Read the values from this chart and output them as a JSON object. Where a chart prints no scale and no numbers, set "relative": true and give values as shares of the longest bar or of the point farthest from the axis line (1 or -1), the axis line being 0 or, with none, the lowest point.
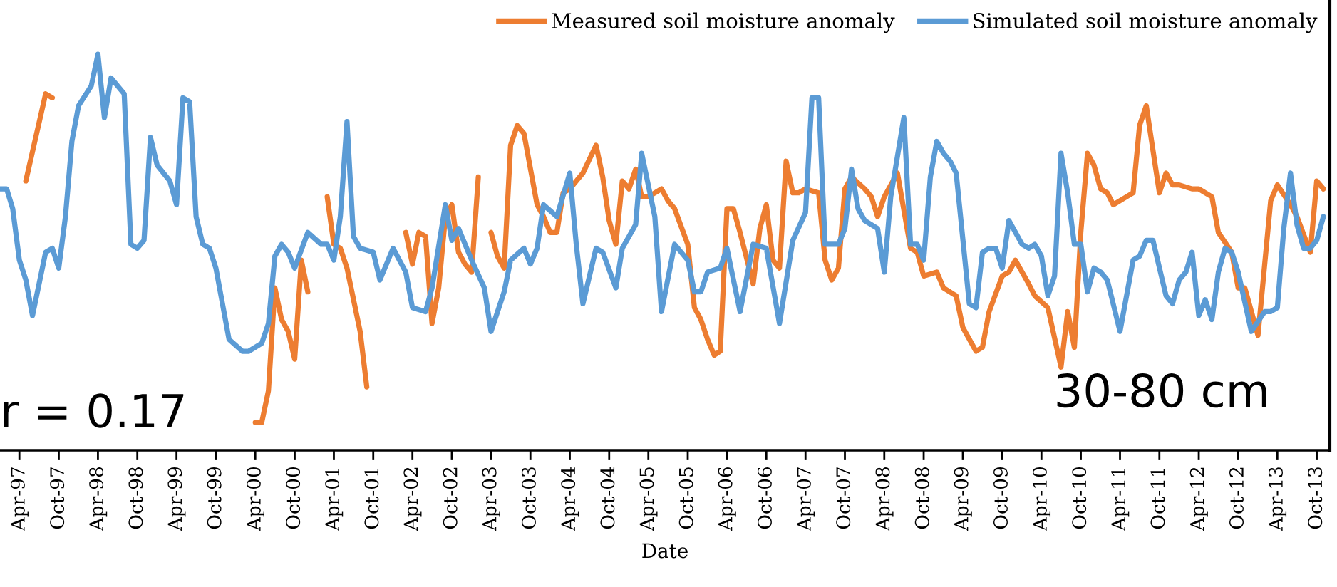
{
  "chart_data": {
    "type": "line",
    "relative": true,
    "xlabel": "Date",
    "legend": "top right",
    "grid": false,
    "marker": "none",
    "line_style": "solid",
    "annotations": [
      "r = 0.17",
      "30-80 cm"
    ],
    "xlim": [
      "1997-01",
      "2013-12"
    ],
    "xticks": [
      {
        "value": "1997-04",
        "label": "Apr-97"
      },
      {
        "value": "1997-10",
        "label": "Oct-97"
      },
      {
        "value": "1998-04",
        "label": "Apr-98"
      },
      {
        "value": "1998-10",
        "label": "Oct-98"
      },
      {
        "value": "1999-04",
        "label": "Apr-99"
      },
      {
        "value": "1999-10",
        "label": "Oct-99"
      },
      {
        "value": "2000-04",
        "label": "Apr-00"
      },
      {
        "value": "2000-10",
        "label": "Oct-00"
      },
      {
        "value": "2001-04",
        "label": "Apr-01"
      },
      {
        "value": "2001-10",
        "label": "Oct-01"
      },
      {
        "value": "2002-04",
        "label": "Apr-02"
      },
      {
        "value": "2002-10",
        "label": "Oct-02"
      },
      {
        "value": "2003-04",
        "label": "Apr-03"
      },
      {
        "value": "2003-10",
        "label": "Oct-03"
      },
      {
        "value": "2004-04",
        "label": "Apr-04"
      },
      {
        "value": "2004-10",
        "label": "Oct-04"
      },
      {
        "value": "2005-04",
        "label": "Apr-05"
      },
      {
        "value": "2005-10",
        "label": "Oct-05"
      },
      {
        "value": "2006-04",
        "label": "Apr-06"
      },
      {
        "value": "2006-10",
        "label": "Oct-06"
      },
      {
        "value": "2007-04",
        "label": "Apr-07"
      },
      {
        "value": "2007-10",
        "label": "Oct-07"
      },
      {
        "value": "2008-04",
        "label": "Apr-08"
      },
      {
        "value": "2008-10",
        "label": "Oct-08"
      },
      {
        "value": "2009-04",
        "label": "Apr-09"
      },
      {
        "value": "2009-10",
        "label": "Oct-09"
      },
      {
        "value": "2010-04",
        "label": "Apr-10"
      },
      {
        "value": "2010-10",
        "label": "Oct-10"
      },
      {
        "value": "2011-04",
        "label": "Apr-11"
      },
      {
        "value": "2011-10",
        "label": "Oct-11"
      },
      {
        "value": "2012-04",
        "label": "Apr-12"
      },
      {
        "value": "2012-10",
        "label": "Oct-12"
      },
      {
        "value": "2013-04",
        "label": "Apr-13"
      },
      {
        "value": "2013-10",
        "label": "Oct-13"
      }
    ],
    "series": [
      {
        "name": "Measured soil moisture anomaly",
        "color": "#ed7d31",
        "x": [
          "1997-05",
          "1997-08",
          "1997-09",
          "1997-10",
          "2000-04",
          "2000-05",
          "2000-06",
          "2000-07",
          "2000-08",
          "2000-09",
          "2000-10",
          "2000-11",
          "2000-12",
          "2001-01",
          "2001-03",
          "2001-04",
          "2001-05",
          "2001-06",
          "2001-08",
          "2001-09",
          "2001-12",
          "2002-03",
          "2002-04",
          "2002-05",
          "2002-06",
          "2002-07",
          "2002-08",
          "2002-09",
          "2002-10",
          "2002-11",
          "2002-12",
          "2003-01",
          "2003-02",
          "2003-03",
          "2003-04",
          "2003-05",
          "2003-06",
          "2003-07",
          "2003-08",
          "2003-09",
          "2003-11",
          "2003-12",
          "2004-01",
          "2004-02",
          "2004-03",
          "2004-04",
          "2004-06",
          "2004-08",
          "2004-09",
          "2004-10",
          "2004-11",
          "2004-12",
          "2005-01",
          "2005-02",
          "2005-03",
          "2005-04",
          "2005-06",
          "2005-07",
          "2005-08",
          "2005-10",
          "2005-11",
          "2005-12",
          "2006-01",
          "2006-02",
          "2006-03",
          "2006-04",
          "2006-05",
          "2006-06",
          "2006-08",
          "2006-09",
          "2006-10",
          "2006-11",
          "2006-12",
          "2007-01",
          "2007-02",
          "2007-03",
          "2007-04",
          "2007-06",
          "2007-07",
          "2007-08",
          "2007-09",
          "2007-10",
          "2007-11",
          "2008-01",
          "2008-02",
          "2008-03",
          "2008-04",
          "2008-06",
          "2008-08",
          "2008-09",
          "2008-10",
          "2008-12",
          "2009-01",
          "2009-03",
          "2009-04",
          "2009-06",
          "2009-07",
          "2009-08",
          "2009-10",
          "2009-11",
          "2009-12",
          "2010-02",
          "2010-03",
          "2010-05",
          "2010-07",
          "2010-08",
          "2010-09",
          "2010-10",
          "2010-11",
          "2010-12",
          "2011-01",
          "2011-02",
          "2011-03",
          "2011-05",
          "2011-06",
          "2011-07",
          "2011-08",
          "2011-10",
          "2011-11",
          "2011-12",
          "2012-01",
          "2012-03",
          "2012-04",
          "2012-05",
          "2012-06",
          "2012-07",
          "2012-09",
          "2012-10",
          "2012-11",
          "2013-01",
          "2013-03",
          "2013-04",
          "2013-06",
          "2013-07",
          "2013-09",
          "2013-10",
          "2013-11"
        ],
        "values": [
          0.68,
          0.9,
          0.89,
          null,
          0.07,
          0.07,
          0.15,
          0.41,
          0.33,
          0.3,
          0.23,
          0.48,
          0.4,
          null,
          0.64,
          0.52,
          0.51,
          0.46,
          0.3,
          0.16,
          null,
          0.55,
          0.47,
          0.55,
          0.54,
          0.32,
          0.41,
          0.59,
          0.62,
          0.5,
          0.47,
          0.45,
          0.69,
          null,
          0.55,
          0.49,
          0.46,
          0.77,
          0.82,
          0.8,
          0.62,
          0.59,
          0.55,
          0.55,
          0.65,
          0.66,
          0.7,
          0.77,
          0.69,
          0.58,
          0.52,
          0.68,
          0.66,
          0.71,
          0.64,
          0.64,
          0.66,
          0.63,
          0.61,
          0.52,
          0.36,
          0.33,
          0.28,
          0.24,
          0.25,
          0.61,
          0.61,
          0.55,
          0.42,
          0.56,
          0.62,
          0.48,
          0.46,
          0.73,
          0.65,
          0.65,
          0.66,
          0.65,
          0.48,
          0.43,
          0.46,
          0.66,
          0.69,
          0.66,
          0.64,
          0.59,
          0.64,
          0.7,
          0.51,
          0.5,
          0.44,
          0.45,
          0.41,
          0.39,
          0.31,
          0.25,
          0.26,
          0.35,
          0.44,
          0.45,
          0.48,
          0.42,
          0.39,
          0.36,
          0.21,
          0.35,
          0.26,
          0.55,
          0.75,
          0.72,
          0.66,
          0.65,
          0.62,
          0.64,
          0.65,
          0.82,
          0.87,
          0.65,
          0.7,
          0.67,
          0.67,
          0.66,
          0.66,
          0.65,
          0.64,
          0.55,
          0.5,
          0.41,
          0.41,
          0.29,
          0.63,
          0.67,
          0.62,
          0.59,
          0.5,
          0.68,
          0.66
        ]
      },
      {
        "name": "Simulated soil moisture anomaly",
        "color": "#5b9bd5",
        "x": [
          "1997-01",
          "1997-02",
          "1997-03",
          "1997-04",
          "1997-05",
          "1997-06",
          "1997-08",
          "1997-09",
          "1997-10",
          "1997-11",
          "1997-12",
          "1998-01",
          "1998-03",
          "1998-04",
          "1998-05",
          "1998-06",
          "1998-08",
          "1998-09",
          "1998-10",
          "1998-11",
          "1998-12",
          "1999-01",
          "1999-03",
          "1999-04",
          "1999-05",
          "1999-06",
          "1999-07",
          "1999-08",
          "1999-09",
          "1999-10",
          "1999-12",
          "2000-02",
          "2000-03",
          "2000-05",
          "2000-06",
          "2000-07",
          "2000-08",
          "2000-09",
          "2000-10",
          "2000-12",
          "2001-02",
          "2001-03",
          "2001-04",
          "2001-05",
          "2001-06",
          "2001-07",
          "2001-08",
          "2001-10",
          "2001-11",
          "2002-01",
          "2002-03",
          "2002-04",
          "2002-06",
          "2002-07",
          "2002-09",
          "2002-10",
          "2002-11",
          "2003-01",
          "2003-03",
          "2003-04",
          "2003-06",
          "2003-07",
          "2003-09",
          "2003-10",
          "2003-11",
          "2003-12",
          "2004-02",
          "2004-04",
          "2004-05",
          "2004-06",
          "2004-08",
          "2004-09",
          "2004-11",
          "2004-12",
          "2005-02",
          "2005-03",
          "2005-05",
          "2005-06",
          "2005-08",
          "2005-10",
          "2005-11",
          "2005-12",
          "2006-01",
          "2006-03",
          "2006-04",
          "2006-06",
          "2006-08",
          "2006-10",
          "2006-12",
          "2007-02",
          "2007-04",
          "2007-05",
          "2007-06",
          "2007-07",
          "2007-09",
          "2007-10",
          "2007-11",
          "2007-12",
          "2008-01",
          "2008-03",
          "2008-04",
          "2008-05",
          "2008-07",
          "2008-08",
          "2008-09",
          "2008-10",
          "2008-11",
          "2008-12",
          "2009-01",
          "2009-02",
          "2009-03",
          "2009-05",
          "2009-06",
          "2009-07",
          "2009-08",
          "2009-09",
          "2009-10",
          "2009-11",
          "2010-01",
          "2010-02",
          "2010-03",
          "2010-04",
          "2010-05",
          "2010-06",
          "2010-07",
          "2010-08",
          "2010-09",
          "2010-10",
          "2010-11",
          "2010-12",
          "2011-01",
          "2011-02",
          "2011-04",
          "2011-06",
          "2011-07",
          "2011-08",
          "2011-09",
          "2011-11",
          "2011-12",
          "2012-01",
          "2012-02",
          "2012-03",
          "2012-04",
          "2012-05",
          "2012-06",
          "2012-07",
          "2012-08",
          "2012-09",
          "2012-10",
          "2012-12",
          "2013-02",
          "2013-03",
          "2013-04",
          "2013-05",
          "2013-06",
          "2013-07",
          "2013-08",
          "2013-09",
          "2013-10",
          "2013-11"
        ],
        "values": [
          0.66,
          0.66,
          0.61,
          0.48,
          0.43,
          0.34,
          0.5,
          0.51,
          0.46,
          0.59,
          0.78,
          0.87,
          0.92,
          1.0,
          0.84,
          0.94,
          0.9,
          0.52,
          0.51,
          0.53,
          0.79,
          0.72,
          0.68,
          0.62,
          0.89,
          0.88,
          0.59,
          0.52,
          0.51,
          0.46,
          0.28,
          0.25,
          0.25,
          0.27,
          0.32,
          0.49,
          0.52,
          0.5,
          0.46,
          0.55,
          0.52,
          0.52,
          0.48,
          0.59,
          0.83,
          0.54,
          0.51,
          0.5,
          0.43,
          0.51,
          0.45,
          0.36,
          0.35,
          0.41,
          0.62,
          0.53,
          0.56,
          0.48,
          0.41,
          0.3,
          0.4,
          0.48,
          0.51,
          0.47,
          0.51,
          0.62,
          0.59,
          0.7,
          0.52,
          0.37,
          0.51,
          0.5,
          0.41,
          0.51,
          0.57,
          0.75,
          0.59,
          0.35,
          0.52,
          0.48,
          0.4,
          0.4,
          0.45,
          0.46,
          0.51,
          0.35,
          0.52,
          0.51,
          0.32,
          0.53,
          0.6,
          0.89,
          0.89,
          0.52,
          0.52,
          0.56,
          0.71,
          0.61,
          0.58,
          0.56,
          0.45,
          0.64,
          0.84,
          0.52,
          0.52,
          0.48,
          0.69,
          0.78,
          0.75,
          0.73,
          0.7,
          0.37,
          0.36,
          0.5,
          0.51,
          0.51,
          0.46,
          0.58,
          0.52,
          0.51,
          0.52,
          0.49,
          0.39,
          0.44,
          0.75,
          0.65,
          0.52,
          0.52,
          0.4,
          0.46,
          0.45,
          0.43,
          0.3,
          0.48,
          0.49,
          0.53,
          0.53,
          0.39,
          0.37,
          0.43,
          0.45,
          0.5,
          0.34,
          0.38,
          0.33,
          0.45,
          0.51,
          0.5,
          0.45,
          0.3,
          0.35,
          0.35,
          0.36,
          0.56,
          0.7,
          0.57,
          0.51,
          0.51,
          0.53,
          0.59
        ]
      }
    ]
  }
}
